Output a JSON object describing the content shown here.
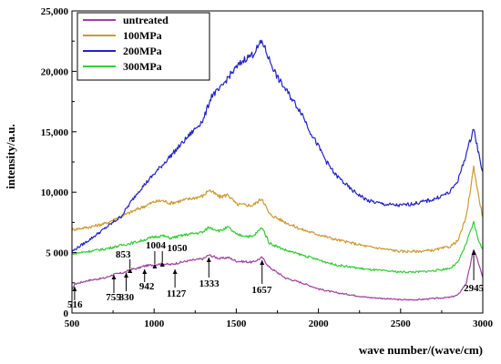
{
  "chart_data": {
    "type": "line",
    "title": "",
    "xlabel": "wave number/(wave/cm)",
    "ylabel": "intensity/a.u.",
    "xlim": [
      500,
      3000
    ],
    "ylim": [
      0,
      25000
    ],
    "xticks": [
      500,
      1000,
      1500,
      2000,
      2500,
      3000
    ],
    "xtick_labels": [
      "500",
      "1000",
      "1500",
      "2000",
      "2500",
      "3000"
    ],
    "yticks": [
      0,
      5000,
      10000,
      15000,
      20000,
      25000
    ],
    "ytick_labels": [
      "0",
      "5 000",
      "10,000",
      "15,000",
      "20,000",
      "25,000"
    ],
    "grid": false,
    "legend_position": "top-left",
    "series": [
      {
        "name": "untreated",
        "color": "#a040a0",
        "x": [
          500,
          516,
          600,
          700,
          755,
          800,
          830,
          853,
          900,
          942,
          1004,
          1050,
          1100,
          1127,
          1200,
          1300,
          1333,
          1400,
          1450,
          1500,
          1600,
          1657,
          1700,
          1800,
          1900,
          2000,
          2100,
          2200,
          2300,
          2400,
          2500,
          2600,
          2700,
          2800,
          2850,
          2900,
          2945,
          2970,
          3000
        ],
        "y": [
          1900,
          2400,
          2700,
          2900,
          3200,
          3300,
          3400,
          3600,
          3700,
          3900,
          4000,
          4100,
          4000,
          4100,
          4300,
          4500,
          4800,
          4500,
          4600,
          4300,
          4200,
          4600,
          3800,
          2900,
          2500,
          2000,
          1700,
          1500,
          1300,
          1200,
          1100,
          1100,
          1200,
          1300,
          1500,
          2500,
          5300,
          4300,
          2900
        ]
      },
      {
        "name": "100MPa",
        "color": "#cc9933",
        "x": [
          500,
          600,
          700,
          800,
          900,
          1000,
          1050,
          1100,
          1200,
          1300,
          1333,
          1400,
          1450,
          1500,
          1600,
          1657,
          1700,
          1800,
          1900,
          2000,
          2100,
          2200,
          2300,
          2400,
          2500,
          2600,
          2700,
          2800,
          2850,
          2900,
          2945,
          2970,
          3000
        ],
        "y": [
          6900,
          7100,
          7400,
          8000,
          8600,
          9200,
          9300,
          9100,
          9400,
          9700,
          10200,
          9600,
          9800,
          9000,
          8900,
          9500,
          8200,
          7500,
          6900,
          6500,
          6100,
          5800,
          5500,
          5300,
          5100,
          5100,
          5200,
          5500,
          6000,
          8000,
          12100,
          10000,
          7900
        ]
      },
      {
        "name": "200MPa",
        "color": "#2222cc",
        "x": [
          500,
          600,
          700,
          800,
          900,
          1000,
          1100,
          1200,
          1300,
          1350,
          1400,
          1450,
          1500,
          1550,
          1600,
          1657,
          1700,
          1750,
          1800,
          1850,
          1900,
          1950,
          2000,
          2050,
          2100,
          2200,
          2300,
          2400,
          2500,
          2600,
          2700,
          2800,
          2850,
          2900,
          2945,
          2970,
          3000
        ],
        "y": [
          5100,
          6000,
          7000,
          8000,
          10000,
          11500,
          13000,
          14500,
          16000,
          18000,
          18500,
          19500,
          20300,
          21000,
          21400,
          22500,
          21000,
          19500,
          18500,
          17500,
          16500,
          15000,
          13800,
          12500,
          11500,
          10200,
          9300,
          9000,
          8900,
          9100,
          9400,
          10000,
          11000,
          13200,
          15300,
          13500,
          11600
        ]
      },
      {
        "name": "300MPa",
        "color": "#33cc33",
        "x": [
          500,
          600,
          700,
          800,
          900,
          1000,
          1050,
          1100,
          1200,
          1300,
          1333,
          1400,
          1450,
          1500,
          1600,
          1657,
          1700,
          1800,
          1900,
          2000,
          2100,
          2200,
          2300,
          2400,
          2500,
          2600,
          2700,
          2800,
          2850,
          2900,
          2945,
          2970,
          3000
        ],
        "y": [
          4900,
          5100,
          5300,
          5600,
          5900,
          6300,
          6400,
          6200,
          6500,
          6700,
          7100,
          6800,
          7100,
          6500,
          6300,
          7100,
          5800,
          5200,
          4800,
          4400,
          4000,
          3800,
          3600,
          3500,
          3400,
          3400,
          3500,
          3700,
          4200,
          5800,
          7500,
          6200,
          5200
        ]
      }
    ],
    "annotations": [
      {
        "label": "516",
        "x": 516,
        "y": 2400
      },
      {
        "label": "755",
        "x": 755,
        "y": 3200
      },
      {
        "label": "830",
        "x": 830,
        "y": 3400
      },
      {
        "label": "853",
        "x": 853,
        "y": 3600
      },
      {
        "label": "942",
        "x": 942,
        "y": 3900
      },
      {
        "label": "1004",
        "x": 1004,
        "y": 4000
      },
      {
        "label": "1050",
        "x": 1050,
        "y": 4100
      },
      {
        "label": "1127",
        "x": 1127,
        "y": 4100
      },
      {
        "label": "1333",
        "x": 1333,
        "y": 4800
      },
      {
        "label": "1657",
        "x": 1657,
        "y": 4600
      },
      {
        "label": "2945",
        "x": 2945,
        "y": 5300
      }
    ]
  }
}
